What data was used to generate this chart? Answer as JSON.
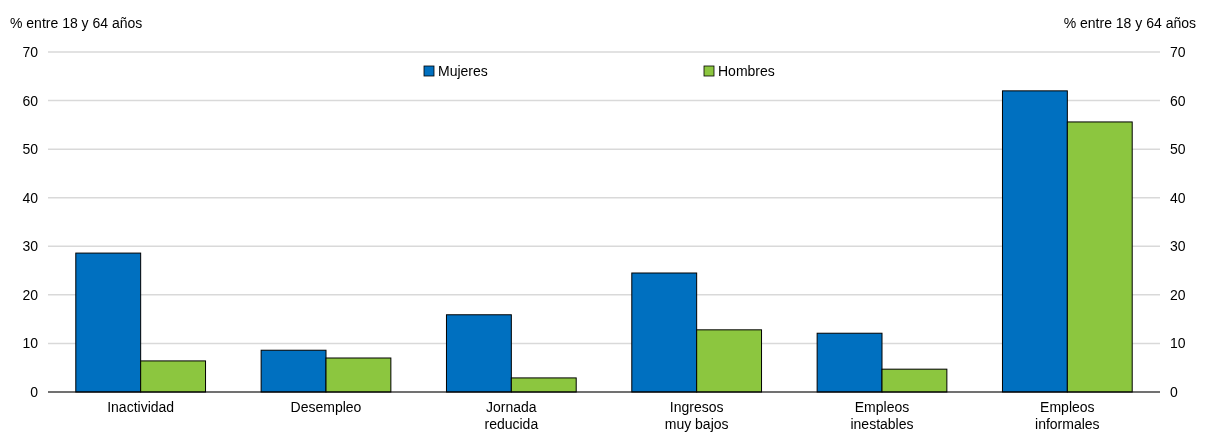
{
  "chart_data": {
    "type": "bar",
    "ylabel": "% entre 18 y 64 años",
    "y2label": "% entre 18 y 64 años",
    "categories": [
      "Inactividad",
      "Desempleo",
      "Jornada reducida",
      "Ingresos muy bajos",
      "Empleos inestables",
      "Empleos informales"
    ],
    "series": [
      {
        "name": "Mujeres",
        "color": "#0070c0",
        "values": [
          28.6,
          8.6,
          15.9,
          24.5,
          12.1,
          62.0
        ]
      },
      {
        "name": "Hombres",
        "color": "#8cc63f",
        "values": [
          6.4,
          7.0,
          2.9,
          12.8,
          4.7,
          55.6
        ]
      }
    ],
    "ylim": [
      0,
      70
    ],
    "yticks": [
      0,
      10,
      20,
      30,
      40,
      50,
      60,
      70
    ],
    "y2lim": [
      0,
      70
    ],
    "y2ticks": [
      0,
      10,
      20,
      30,
      40,
      50,
      60,
      70
    ],
    "grid": "y",
    "legend": "top"
  }
}
